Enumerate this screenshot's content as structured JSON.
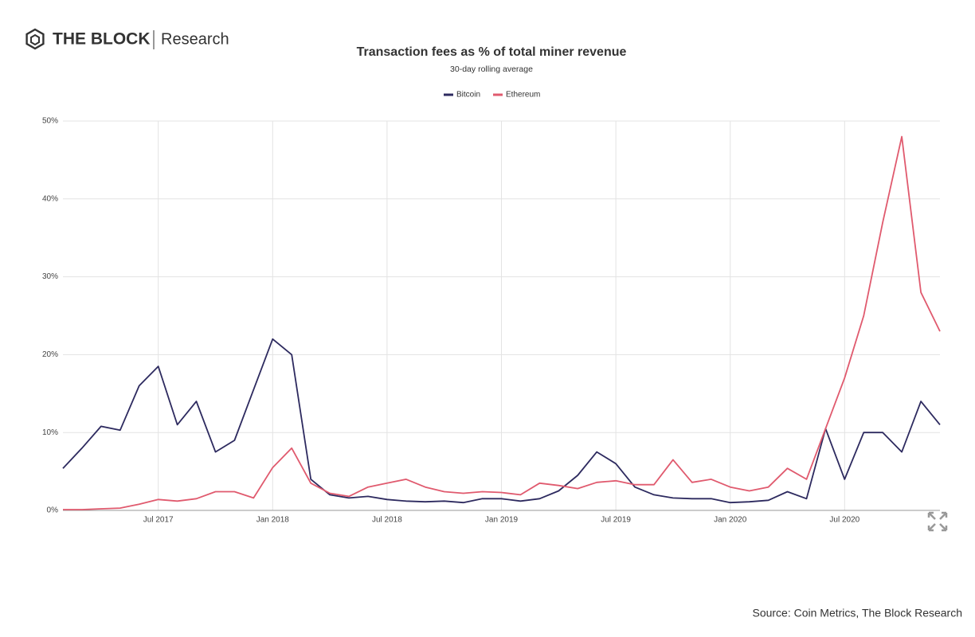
{
  "brand": "THE BLOCK",
  "brand_section": "Research",
  "source": "Source: Coin Metrics, The Block Research",
  "chart_data": {
    "type": "line",
    "title": "Transaction fees as % of total miner revenue",
    "subtitle": "30-day rolling average",
    "x": [
      "2017-02",
      "2017-03",
      "2017-04",
      "2017-05",
      "2017-06",
      "2017-07",
      "2017-08",
      "2017-09",
      "2017-10",
      "2017-11",
      "2017-12",
      "2018-01",
      "2018-02",
      "2018-03",
      "2018-04",
      "2018-05",
      "2018-06",
      "2018-07",
      "2018-08",
      "2018-09",
      "2018-10",
      "2018-11",
      "2018-12",
      "2019-01",
      "2019-02",
      "2019-03",
      "2019-04",
      "2019-05",
      "2019-06",
      "2019-07",
      "2019-08",
      "2019-09",
      "2019-10",
      "2019-11",
      "2019-12",
      "2020-01",
      "2020-02",
      "2020-03",
      "2020-04",
      "2020-05",
      "2020-06",
      "2020-07",
      "2020-08",
      "2020-09",
      "2020-10",
      "2020-11",
      "2020-12"
    ],
    "series": [
      {
        "name": "Bitcoin",
        "color": "#2d2a5f",
        "values": [
          5.4,
          8,
          10.8,
          10.3,
          16,
          18.5,
          11,
          14,
          7.5,
          9,
          15.5,
          22,
          20,
          4,
          2,
          1.6,
          1.8,
          1.4,
          1.2,
          1.1,
          1.2,
          1,
          1.5,
          1.5,
          1.2,
          1.5,
          2.5,
          4.5,
          7.5,
          6,
          3,
          2,
          1.6,
          1.5,
          1.5,
          1,
          1.1,
          1.3,
          2.4,
          1.5,
          10.5,
          4,
          10,
          10,
          7.5,
          14,
          11
        ]
      },
      {
        "name": "Ethereum",
        "color": "#e05a6e",
        "values": [
          0.1,
          0.1,
          0.2,
          0.3,
          0.8,
          1.4,
          1.2,
          1.5,
          2.4,
          2.4,
          1.6,
          5.5,
          8,
          3.5,
          2.2,
          1.8,
          3,
          3.5,
          4,
          3,
          2.4,
          2.2,
          2.4,
          2.3,
          2,
          3.5,
          3.2,
          2.8,
          3.6,
          3.8,
          3.3,
          3.3,
          6.5,
          3.6,
          4,
          3,
          2.5,
          3,
          5.4,
          4,
          10.5,
          17,
          25,
          37,
          48,
          28,
          23
        ]
      }
    ],
    "xlim": [
      "2017-02",
      "2020-12"
    ],
    "xticks": [
      {
        "value": "2017-07",
        "label": "Jul 2017"
      },
      {
        "value": "2018-01",
        "label": "Jan 2018"
      },
      {
        "value": "2018-07",
        "label": "Jul 2018"
      },
      {
        "value": "2019-01",
        "label": "Jan 2019"
      },
      {
        "value": "2019-07",
        "label": "Jul 2019"
      },
      {
        "value": "2020-01",
        "label": "Jan 2020"
      },
      {
        "value": "2020-07",
        "label": "Jul 2020"
      }
    ],
    "ylim": [
      0,
      50
    ],
    "yticks": [
      {
        "value": 0,
        "label": "0%"
      },
      {
        "value": 10,
        "label": "10%"
      },
      {
        "value": 20,
        "label": "20%"
      },
      {
        "value": 30,
        "label": "30%"
      },
      {
        "value": 40,
        "label": "40%"
      },
      {
        "value": 50,
        "label": "50%"
      }
    ],
    "grid": true,
    "legend": "top"
  }
}
